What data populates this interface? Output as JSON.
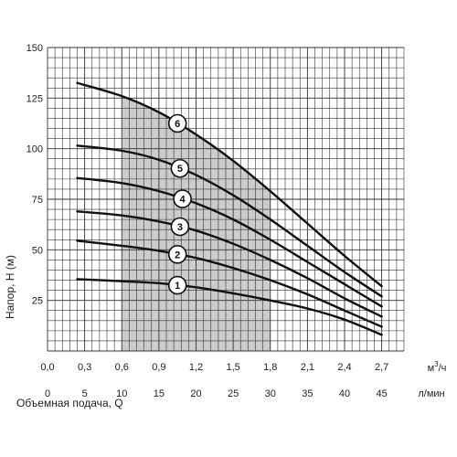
{
  "chart_data": {
    "type": "line",
    "ylabel": "Напор, Н (м)",
    "xlabel": "Объемная подача, Q",
    "x_unit_primary": "м³/ч",
    "x_unit_primary_base": "м",
    "x_unit_primary_exp": "3",
    "x_unit_primary_tail": "/ч",
    "x_unit_secondary": "л/мин",
    "xlim": [
      0,
      2.88
    ],
    "ylim": [
      0,
      150
    ],
    "grid": true,
    "x_ticks_primary": [
      "0,0",
      "0,3",
      "0,6",
      "0,9",
      "1,2",
      "1,5",
      "1,8",
      "2,1",
      "2,4",
      "2,7"
    ],
    "x_ticks_secondary": [
      "0",
      "5",
      "10",
      "15",
      "20",
      "25",
      "30",
      "35",
      "40",
      "45"
    ],
    "y_ticks": [
      "25",
      "50",
      "75",
      "100",
      "125",
      "150"
    ],
    "recommended_range": {
      "x_from": 0.6,
      "x_to": 1.8
    },
    "shade_color": "#cccccc",
    "series": [
      {
        "name": "1",
        "points": [
          [
            0.24,
            35.5
          ],
          [
            0.6,
            34.5
          ],
          [
            0.9,
            33.5
          ],
          [
            1.2,
            31.5
          ],
          [
            1.5,
            28.5
          ],
          [
            1.8,
            25
          ],
          [
            2.1,
            21
          ],
          [
            2.4,
            15.5
          ],
          [
            2.7,
            8
          ]
        ],
        "label_x": 1.05
      },
      {
        "name": "2",
        "points": [
          [
            0.24,
            54.5
          ],
          [
            0.6,
            52
          ],
          [
            0.9,
            49.5
          ],
          [
            1.2,
            46
          ],
          [
            1.5,
            41
          ],
          [
            1.8,
            35
          ],
          [
            2.1,
            28
          ],
          [
            2.4,
            20
          ],
          [
            2.7,
            12
          ]
        ],
        "label_x": 1.05
      },
      {
        "name": "3",
        "points": [
          [
            0.24,
            69
          ],
          [
            0.6,
            67
          ],
          [
            0.9,
            64
          ],
          [
            1.2,
            59.5
          ],
          [
            1.5,
            53
          ],
          [
            1.8,
            45
          ],
          [
            2.1,
            36
          ],
          [
            2.4,
            26
          ],
          [
            2.7,
            17
          ]
        ],
        "label_x": 1.07
      },
      {
        "name": "4",
        "points": [
          [
            0.24,
            85.5
          ],
          [
            0.6,
            83
          ],
          [
            0.9,
            79
          ],
          [
            1.2,
            73
          ],
          [
            1.5,
            65
          ],
          [
            1.8,
            55
          ],
          [
            2.1,
            44
          ],
          [
            2.4,
            33
          ],
          [
            2.7,
            22
          ]
        ],
        "label_x": 1.09
      },
      {
        "name": "5",
        "points": [
          [
            0.24,
            101.5
          ],
          [
            0.6,
            99
          ],
          [
            0.9,
            94.5
          ],
          [
            1.2,
            87
          ],
          [
            1.5,
            77
          ],
          [
            1.8,
            65
          ],
          [
            2.1,
            52
          ],
          [
            2.4,
            39
          ],
          [
            2.7,
            27
          ]
        ],
        "label_x": 1.07
      },
      {
        "name": "6",
        "points": [
          [
            0.24,
            132.5
          ],
          [
            0.6,
            126
          ],
          [
            0.9,
            118
          ],
          [
            1.2,
            107
          ],
          [
            1.5,
            94
          ],
          [
            1.8,
            79
          ],
          [
            2.1,
            63
          ],
          [
            2.4,
            47
          ],
          [
            2.7,
            32
          ]
        ],
        "label_x": 1.05
      }
    ]
  }
}
